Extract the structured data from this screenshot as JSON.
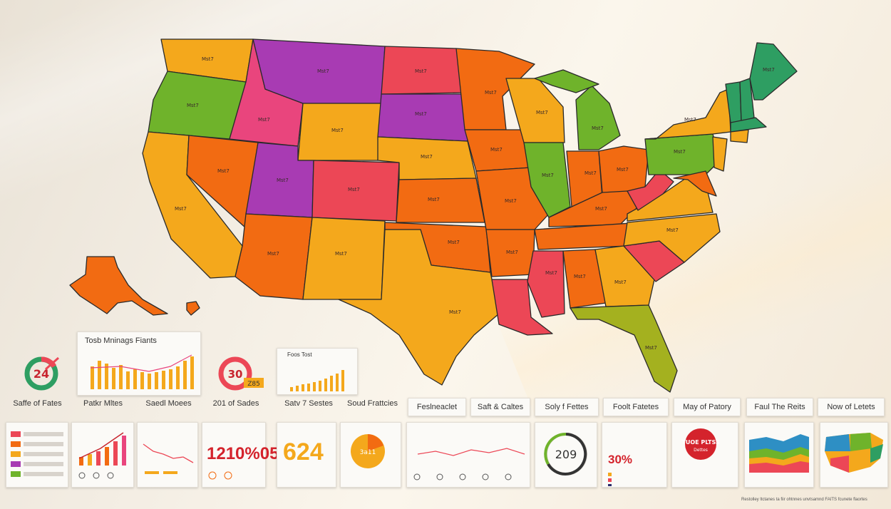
{
  "map": {
    "state_label": "Mst7",
    "colors": {
      "orange": "#f4a81c",
      "deep_orange": "#f26b12",
      "red": "#ec4756",
      "magenta": "#a83bb3",
      "pink": "#e9457d",
      "green": "#6fb32b",
      "teal": "#2e9e62",
      "olive": "#a4b11f"
    }
  },
  "panels": {
    "top_chart_title": "Tosb Mninags Fiants",
    "small_chart_title": "Foos Tost",
    "ring_left_value": "24",
    "ring_mid_value": "30",
    "ring_mid_sub": "Z85"
  },
  "captions": [
    "Saffe of Fates",
    "Patkr Mltes",
    "Saedl Moees",
    "201 of Sades",
    "Satv 7 Sestes",
    "Soud Frattcies",
    "Feslneaclet",
    "Saft & Caltes",
    "Soly f Fettes",
    "Foolt Fatetes",
    "May of Patory",
    "Faul The Reits",
    "Now of Letets"
  ],
  "cards": {
    "c3_value": "1210%05",
    "c4_value": "624",
    "c5_value": "3a11",
    "c7_value": "209",
    "c8_value": "30%",
    "c9_stamp": "TUOE PLTSS",
    "c9_stamp_sub": "Dettes"
  },
  "footer": "Restolley ltctanes ta fiir ohtnnes unvtsamnd FAITS fcunete flaortes"
}
